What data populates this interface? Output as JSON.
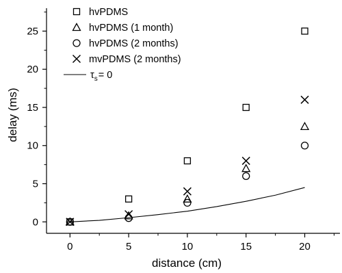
{
  "chart_data": {
    "type": "scatter",
    "title": "",
    "xlabel": "distance (cm)",
    "ylabel": "delay (ms)",
    "xlim": [
      -2,
      23
    ],
    "ylim": [
      -1.5,
      28
    ],
    "xticks": [
      0,
      5,
      10,
      15,
      20
    ],
    "yticks": [
      0,
      5,
      10,
      15,
      20,
      25
    ],
    "grid": false,
    "legend_position": "top-left",
    "series": [
      {
        "name": "hvPDMS",
        "marker": "square",
        "x": [
          0,
          5,
          10,
          15,
          20
        ],
        "y": [
          0,
          3,
          8,
          15,
          25
        ]
      },
      {
        "name": "hvPDMS (1 month)",
        "marker": "triangle",
        "x": [
          0,
          5,
          10,
          15,
          20
        ],
        "y": [
          0,
          0.8,
          3,
          7,
          12.5
        ]
      },
      {
        "name": "hvPDMS (2 months)",
        "marker": "circle",
        "x": [
          0,
          5,
          10,
          15,
          20
        ],
        "y": [
          0,
          0.5,
          2.5,
          6,
          10
        ]
      },
      {
        "name": "mvPDMS (2 months)",
        "marker": "cross",
        "x": [
          0,
          5,
          10,
          15,
          20
        ],
        "y": [
          0,
          1,
          4,
          8,
          16
        ]
      }
    ],
    "curve": {
      "label_main": "τ",
      "label_sub": "s",
      "label_rest": "= 0",
      "style": "line",
      "x": [
        0,
        2.5,
        5,
        7.5,
        10,
        12.5,
        15,
        17.5,
        20
      ],
      "y": [
        0,
        0.2,
        0.55,
        0.95,
        1.4,
        2.0,
        2.7,
        3.5,
        4.5
      ]
    }
  }
}
